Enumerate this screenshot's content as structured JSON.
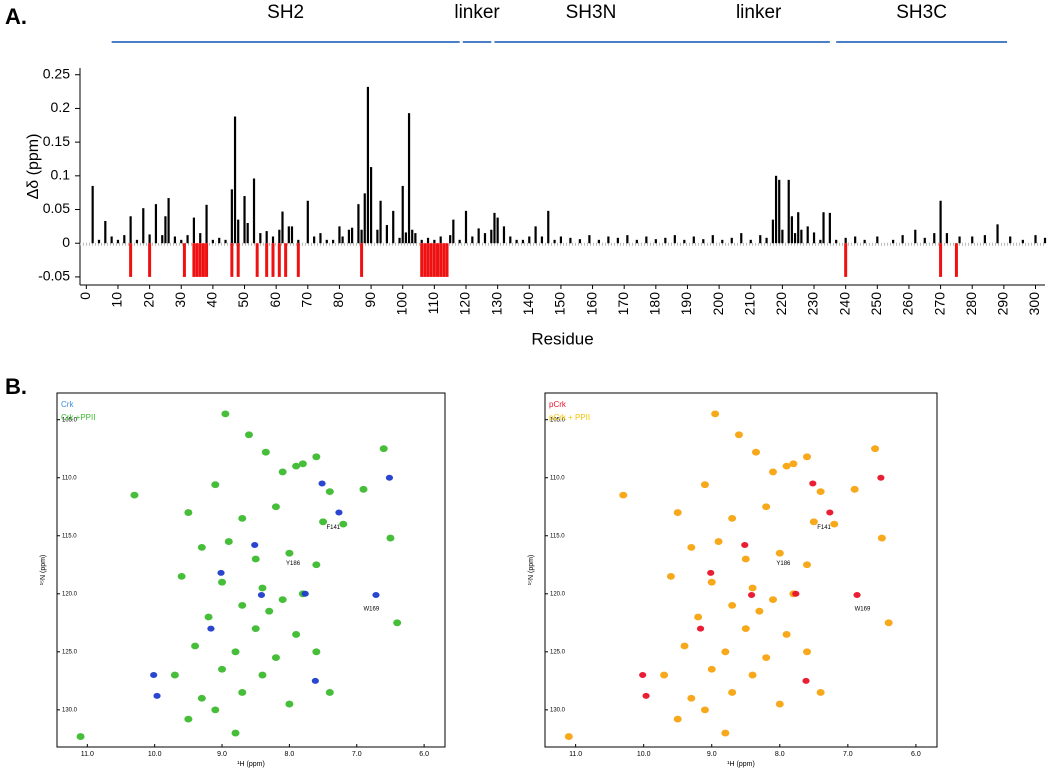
{
  "chart_data": [
    {
      "type": "bar",
      "panel_label": "A.",
      "xlabel": "Residue",
      "ylabel": "Δδ (ppm)",
      "xlim": [
        -2,
        303
      ],
      "ylim": [
        -0.062,
        0.26
      ],
      "xticks": [
        0,
        10,
        20,
        30,
        40,
        50,
        60,
        70,
        80,
        90,
        100,
        110,
        120,
        130,
        140,
        150,
        160,
        170,
        180,
        190,
        200,
        210,
        220,
        230,
        240,
        250,
        260,
        270,
        280,
        290,
        300
      ],
      "yticks": [
        -0.05,
        0,
        0.05,
        0.1,
        0.15,
        0.2,
        0.25
      ],
      "domains": [
        {
          "label": "SH2",
          "start": 8,
          "end": 118
        },
        {
          "label": "linker",
          "start": 119,
          "end": 128
        },
        {
          "label": "SH3N",
          "start": 129,
          "end": 190
        },
        {
          "label": "linker",
          "start": 190,
          "end": 235
        },
        {
          "label": "SH3C",
          "start": 237,
          "end": 291
        }
      ],
      "domain_color": "#4a7fc8",
      "series": [
        {
          "color": "#000000",
          "x": [
            2,
            4,
            6,
            8,
            10,
            12,
            14,
            16,
            18,
            20,
            22,
            24,
            25,
            26,
            28,
            30,
            32,
            34,
            36,
            38,
            40,
            42,
            44,
            46,
            47,
            48,
            50,
            51,
            53,
            55,
            57,
            59,
            61,
            62,
            64,
            65,
            67,
            70,
            72,
            74,
            76,
            78,
            80,
            81,
            83,
            84,
            86,
            87,
            88,
            89,
            90,
            92,
            93,
            95,
            97,
            99,
            100,
            101,
            102,
            103,
            104,
            106,
            108,
            110,
            112,
            115,
            116,
            118,
            120,
            122,
            124,
            126,
            128,
            129,
            130,
            132,
            134,
            136,
            138,
            140,
            142,
            144,
            146,
            148,
            150,
            153,
            156,
            159,
            162,
            165,
            168,
            171,
            174,
            177,
            180,
            183,
            186,
            189,
            192,
            195,
            198,
            201,
            204,
            207,
            210,
            213,
            215,
            217,
            218,
            219,
            220,
            222,
            223,
            224,
            225,
            226,
            228,
            230,
            232,
            233,
            235,
            237,
            240,
            243,
            246,
            250,
            255,
            258,
            262,
            265,
            268,
            270,
            272,
            276,
            280,
            284,
            288,
            292,
            296,
            300,
            303
          ],
          "values": [
            0.085,
            0.005,
            0.033,
            0.01,
            0.005,
            0.012,
            0.04,
            0.005,
            0.052,
            0.013,
            0.058,
            0.012,
            0.04,
            0.067,
            0.01,
            0.005,
            0.012,
            0.038,
            0.015,
            0.057,
            0.005,
            0.008,
            0.005,
            0.08,
            0.188,
            0.035,
            0.07,
            0.03,
            0.096,
            0.015,
            0.018,
            0.01,
            0.02,
            0.047,
            0.025,
            0.025,
            0.005,
            0.063,
            0.01,
            0.015,
            0.005,
            0.005,
            0.025,
            0.01,
            0.02,
            0.023,
            0.058,
            0.02,
            0.074,
            0.232,
            0.113,
            0.02,
            0.063,
            0.027,
            0.048,
            0.008,
            0.085,
            0.016,
            0.193,
            0.02,
            0.015,
            0.005,
            0.008,
            0.005,
            0.01,
            0.012,
            0.035,
            0.005,
            0.048,
            0.01,
            0.022,
            0.015,
            0.02,
            0.045,
            0.038,
            0.025,
            0.01,
            0.005,
            0.005,
            0.01,
            0.025,
            0.01,
            0.048,
            0.005,
            0.01,
            0.008,
            0.006,
            0.012,
            0.005,
            0.01,
            0.008,
            0.012,
            0.005,
            0.01,
            0.006,
            0.008,
            0.012,
            0.005,
            0.01,
            0.006,
            0.012,
            0.005,
            0.008,
            0.015,
            0.005,
            0.012,
            0.008,
            0.035,
            0.1,
            0.094,
            0.02,
            0.094,
            0.04,
            0.015,
            0.046,
            0.02,
            0.025,
            0.016,
            0.005,
            0.046,
            0.045,
            0.005,
            0.008,
            0.01,
            0.005,
            0.01,
            0.005,
            0.012,
            0.02,
            0.008,
            0.015,
            0.063,
            0.015,
            0.01,
            0.01,
            0.012,
            0.028,
            0.01,
            0.005,
            0.012,
            0.008
          ]
        },
        {
          "color": "#ee1111",
          "x": [
            14,
            20,
            31,
            34,
            35,
            36,
            37,
            38,
            46,
            48,
            54,
            57,
            59,
            61,
            63,
            67,
            87,
            106,
            107,
            108,
            109,
            110,
            111,
            112,
            113,
            114,
            240,
            270,
            275
          ],
          "values": [
            -0.05,
            -0.05,
            -0.05,
            -0.05,
            -0.05,
            -0.05,
            -0.05,
            -0.05,
            -0.05,
            -0.05,
            -0.05,
            -0.05,
            -0.05,
            -0.05,
            -0.05,
            -0.05,
            -0.05,
            -0.05,
            -0.05,
            -0.05,
            -0.05,
            -0.05,
            -0.05,
            -0.05,
            -0.05,
            -0.05,
            -0.05,
            -0.05,
            -0.05
          ]
        }
      ]
    },
    {
      "type": "scatter",
      "panel_label": "B.",
      "xlabel": "¹H (ppm)",
      "ylabel": "¹⁵N (ppm)",
      "xlim": [
        11.45,
        5.69
      ],
      "ylim": [
        102.7,
        133.2
      ],
      "yreverse": true,
      "xticks": [
        {
          "value": 11,
          "label": "11.0"
        },
        {
          "value": 10,
          "label": "10.0"
        },
        {
          "value": 9,
          "label": "9.0"
        },
        {
          "value": 8,
          "label": "8.0"
        },
        {
          "value": 7,
          "label": "7.0"
        },
        {
          "value": 6,
          "label": "6.0"
        }
      ],
      "yticks": [
        {
          "value": 105,
          "label": "105.0"
        },
        {
          "value": 110,
          "label": "110.0"
        },
        {
          "value": 115,
          "label": "115.0"
        },
        {
          "value": 120,
          "label": "120.0"
        },
        {
          "value": 125,
          "label": "125.0"
        },
        {
          "value": 130,
          "label": "130.0"
        }
      ],
      "annotations": [
        {
          "text": "F141",
          "x": 7.45,
          "y": 114.3
        },
        {
          "text": "Y186",
          "x": 8.05,
          "y": 117.4
        },
        {
          "text": "W169",
          "x": 6.9,
          "y": 121.3
        }
      ],
      "series": [
        {
          "name": "Crk",
          "color": "#1f3ccc",
          "legend_color": "#3b8fd8",
          "x": [
            9.95,
            9.0,
            8.4,
            7.75,
            6.7,
            7.5,
            6.5,
            8.5,
            7.6,
            9.15,
            10.0,
            7.25
          ],
          "y": [
            128.8,
            118.2,
            120.1,
            120.0,
            120.1,
            110.5,
            110.0,
            115.8,
            127.5,
            123.0,
            127.0,
            113.0
          ]
        },
        {
          "name": "Crk +PPII",
          "color": "#3dbb2e",
          "legend_color": "#3dbb2e",
          "x": [
            8.95,
            8.6,
            8.35,
            7.8,
            7.6,
            6.6,
            10.3,
            9.1,
            8.1,
            7.9,
            7.4,
            6.9,
            9.5,
            8.7,
            8.2,
            7.5,
            7.2,
            6.5,
            9.3,
            8.9,
            8.5,
            8.0,
            7.6,
            9.6,
            9.0,
            8.4,
            8.1,
            8.3,
            7.8,
            8.7,
            9.2,
            8.5,
            7.9,
            6.4,
            9.4,
            8.8,
            8.2,
            7.6,
            9.0,
            8.4,
            9.7,
            9.3,
            8.7,
            8.0,
            7.4,
            9.1,
            8.8,
            11.1,
            9.5
          ],
          "y": [
            104.5,
            106.3,
            107.8,
            108.8,
            108.2,
            107.5,
            111.5,
            110.6,
            109.5,
            109.0,
            111.2,
            111.0,
            113.0,
            113.5,
            112.5,
            113.8,
            114.0,
            115.2,
            116.0,
            115.5,
            117.0,
            116.5,
            117.5,
            118.5,
            119.0,
            119.5,
            120.5,
            121.5,
            120.0,
            121.0,
            122.0,
            123.0,
            123.5,
            122.5,
            124.5,
            125.0,
            125.5,
            125.0,
            126.5,
            127.0,
            127.0,
            129.0,
            128.5,
            129.5,
            128.5,
            130.0,
            132.0,
            132.3,
            130.8
          ]
        }
      ]
    },
    {
      "type": "scatter",
      "xlabel": "¹H (ppm)",
      "ylabel": "¹⁵N (ppm)",
      "xlim": [
        11.45,
        5.69
      ],
      "ylim": [
        102.7,
        133.2
      ],
      "yreverse": true,
      "xticks": [
        {
          "value": 11,
          "label": "11.0"
        },
        {
          "value": 10,
          "label": "10.0"
        },
        {
          "value": 9,
          "label": "9.0"
        },
        {
          "value": 8,
          "label": "8.0"
        },
        {
          "value": 7,
          "label": "7.0"
        },
        {
          "value": 6,
          "label": "6.0"
        }
      ],
      "yticks": [
        {
          "value": 105,
          "label": "105.0"
        },
        {
          "value": 110,
          "label": "110.0"
        },
        {
          "value": 115,
          "label": "115.0"
        },
        {
          "value": 120,
          "label": "120.0"
        },
        {
          "value": 125,
          "label": "125.0"
        },
        {
          "value": 130,
          "label": "130.0"
        }
      ],
      "annotations": [
        {
          "text": "F141",
          "x": 7.45,
          "y": 114.3
        },
        {
          "text": "Y186",
          "x": 8.05,
          "y": 117.4
        },
        {
          "text": "W169",
          "x": 6.9,
          "y": 121.3
        }
      ],
      "series": [
        {
          "name": "pCrk",
          "color": "#e8122a",
          "legend_color": "#e8122a",
          "x": [
            9.95,
            9.0,
            8.4,
            7.75,
            6.85,
            7.5,
            6.5,
            8.5,
            7.6,
            9.15,
            10.0,
            7.25
          ],
          "y": [
            128.8,
            118.2,
            120.1,
            120.0,
            120.1,
            110.5,
            110.0,
            115.8,
            127.5,
            123.0,
            127.0,
            113.0
          ]
        },
        {
          "name": "pCrk + PPII",
          "color": "#f7a40f",
          "legend_color": "#f5c400",
          "x": [
            8.95,
            8.6,
            8.35,
            7.8,
            7.6,
            6.6,
            10.3,
            9.1,
            8.1,
            7.9,
            7.4,
            6.9,
            9.5,
            8.7,
            8.2,
            7.5,
            7.2,
            6.5,
            9.3,
            8.9,
            8.5,
            8.0,
            7.6,
            9.6,
            9.0,
            8.4,
            8.1,
            8.3,
            7.8,
            8.7,
            9.2,
            8.5,
            7.9,
            6.4,
            9.4,
            8.8,
            8.2,
            7.6,
            9.0,
            8.4,
            9.7,
            9.3,
            8.7,
            8.0,
            7.4,
            9.1,
            8.8,
            11.1,
            9.5
          ],
          "y": [
            104.5,
            106.3,
            107.8,
            108.8,
            108.2,
            107.5,
            111.5,
            110.6,
            109.5,
            109.0,
            111.2,
            111.0,
            113.0,
            113.5,
            112.5,
            113.8,
            114.0,
            115.2,
            116.0,
            115.5,
            117.0,
            116.5,
            117.5,
            118.5,
            119.0,
            119.5,
            120.5,
            121.5,
            120.0,
            121.0,
            122.0,
            123.0,
            123.5,
            122.5,
            124.5,
            125.0,
            125.5,
            125.0,
            126.5,
            127.0,
            127.0,
            129.0,
            128.5,
            129.5,
            128.5,
            130.0,
            132.0,
            132.3,
            130.8
          ]
        }
      ]
    }
  ]
}
